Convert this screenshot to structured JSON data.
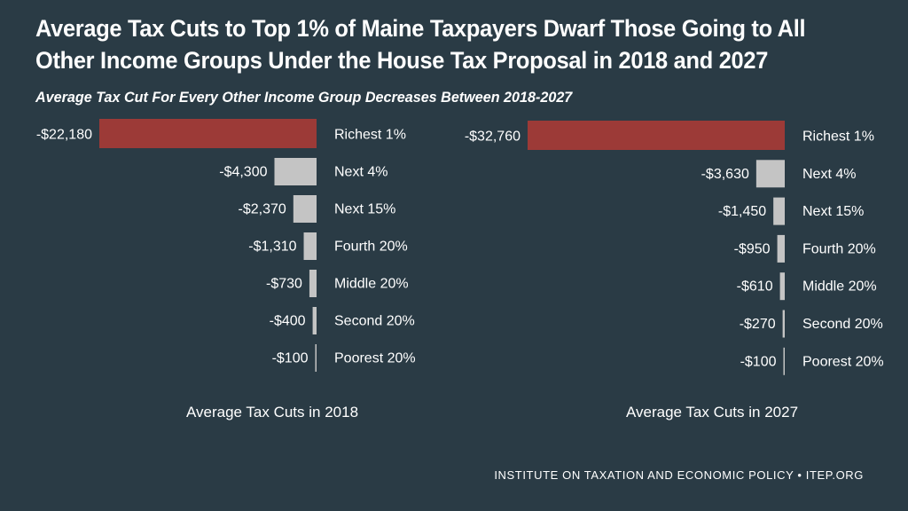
{
  "title": "Average Tax Cuts to Top 1% of Maine Taxpayers Dwarf Those Going to All Other Income Groups Under the House Tax Proposal in 2018 and 2027",
  "subtitle": "Average Tax Cut For Every Other Income Group Decreases Between 2018-2027",
  "footer": "INSTITUTE ON TAXATION AND ECONOMIC POLICY • ITEP.ORG",
  "colors": {
    "background": "#2a3b45",
    "highlight": "#9c3a37",
    "bar": "#c4c4c4",
    "text": "#ffffff"
  },
  "chart_data": [
    {
      "type": "bar",
      "orientation": "horizontal",
      "xlabel": "Average Tax Cuts in 2018",
      "categories": [
        "Richest 1%",
        "Next 4%",
        "Next 15%",
        "Fourth 20%",
        "Middle 20%",
        "Second 20%",
        "Poorest 20%"
      ],
      "values": [
        -22180,
        -4300,
        -2370,
        -1310,
        -730,
        -400,
        -100
      ],
      "labels": [
        "-$22,180",
        "-$4,300",
        "-$2,370",
        "-$1,310",
        "-$730",
        "-$400",
        "-$100"
      ],
      "highlight_index": 0
    },
    {
      "type": "bar",
      "orientation": "horizontal",
      "xlabel": "Average Tax Cuts in 2027",
      "categories": [
        "Richest 1%",
        "Next 4%",
        "Next 15%",
        "Fourth 20%",
        "Middle 20%",
        "Second 20%",
        "Poorest 20%"
      ],
      "values": [
        -32760,
        -3630,
        -1450,
        -950,
        -610,
        -270,
        -100
      ],
      "labels": [
        "-$32,760",
        "-$3,630",
        "-$1,450",
        "-$950",
        "-$610",
        "-$270",
        "-$100"
      ],
      "highlight_index": 0
    }
  ]
}
